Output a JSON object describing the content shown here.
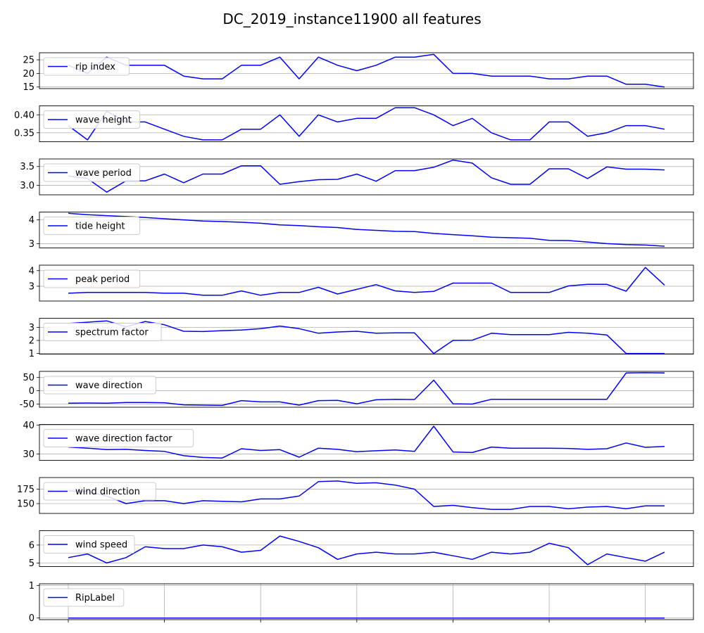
{
  "title": "DC_2019_instance11900 all features",
  "colors": {
    "line": "#0000ff",
    "grid": "#b0b0b0",
    "axes": "#000000"
  },
  "chart_data": [
    {
      "type": "line",
      "grid": true,
      "legend": "upper-left",
      "xlim": [
        -1.5,
        32.5
      ],
      "ylim": [
        14.4,
        27.6
      ],
      "yticks": [
        15,
        20,
        25
      ],
      "series": [
        {
          "name": "rip index",
          "values": [
            23,
            20,
            26,
            23,
            23,
            23,
            19,
            18,
            18,
            23,
            23,
            26,
            18,
            26,
            23,
            21,
            23,
            26,
            26,
            27,
            20,
            20,
            19,
            19,
            19,
            18,
            18,
            19,
            19,
            16,
            16,
            15
          ]
        }
      ]
    },
    {
      "type": "line",
      "grid": true,
      "legend": "upper-left",
      "xlim": [
        -1.5,
        32.5
      ],
      "ylim": [
        0.325,
        0.425
      ],
      "yticks": [
        0.35,
        0.4
      ],
      "ytick_labels": [
        "0.35",
        "0.40"
      ],
      "series": [
        {
          "name": "wave height",
          "values": [
            0.37,
            0.33,
            0.41,
            0.38,
            0.38,
            0.36,
            0.34,
            0.33,
            0.33,
            0.36,
            0.36,
            0.4,
            0.34,
            0.4,
            0.38,
            0.39,
            0.39,
            0.42,
            0.42,
            0.4,
            0.37,
            0.39,
            0.35,
            0.33,
            0.33,
            0.38,
            0.38,
            0.34,
            0.35,
            0.37,
            0.37,
            0.36
          ]
        }
      ]
    },
    {
      "type": "line",
      "grid": true,
      "legend": "upper-left",
      "xlim": [
        -1.5,
        32.5
      ],
      "ylim": [
        2.75,
        3.7
      ],
      "yticks": [
        3.0,
        3.5
      ],
      "ytick_labels": [
        "3.0",
        "3.5"
      ],
      "series": [
        {
          "name": "wave period",
          "values": [
            3.25,
            3.18,
            2.82,
            3.12,
            3.12,
            3.3,
            3.07,
            3.3,
            3.3,
            3.52,
            3.52,
            3.03,
            3.1,
            3.15,
            3.16,
            3.3,
            3.11,
            3.39,
            3.39,
            3.48,
            3.67,
            3.59,
            3.2,
            3.03,
            3.03,
            3.44,
            3.44,
            3.18,
            3.49,
            3.43,
            3.43,
            3.41
          ]
        }
      ]
    },
    {
      "type": "line",
      "grid": true,
      "legend": "upper-left",
      "xlim": [
        -1.5,
        32.5
      ],
      "ylim": [
        2.82,
        4.33
      ],
      "yticks": [
        3,
        4
      ],
      "series": [
        {
          "name": "tide height",
          "values": [
            4.28,
            4.22,
            4.18,
            4.14,
            4.1,
            4.05,
            4.0,
            3.95,
            3.93,
            3.9,
            3.86,
            3.79,
            3.76,
            3.71,
            3.68,
            3.6,
            3.56,
            3.52,
            3.51,
            3.43,
            3.38,
            3.33,
            3.27,
            3.25,
            3.23,
            3.14,
            3.13,
            3.07,
            3.0,
            2.96,
            2.94,
            2.89
          ]
        }
      ]
    },
    {
      "type": "line",
      "grid": true,
      "legend": "upper-left",
      "xlim": [
        -1.5,
        32.5
      ],
      "ylim": [
        2.05,
        4.35
      ],
      "yticks": [
        3,
        4
      ],
      "series": [
        {
          "name": "peak period",
          "values": [
            2.55,
            2.6,
            2.6,
            2.6,
            2.6,
            2.55,
            2.55,
            2.42,
            2.42,
            2.7,
            2.42,
            2.6,
            2.6,
            2.93,
            2.5,
            2.8,
            3.1,
            2.7,
            2.6,
            2.67,
            3.2,
            3.2,
            3.2,
            2.6,
            2.6,
            2.6,
            3.02,
            3.12,
            3.12,
            2.68,
            4.2,
            3.07
          ]
        }
      ]
    },
    {
      "type": "line",
      "grid": true,
      "legend": "upper-left",
      "xlim": [
        -1.5,
        32.5
      ],
      "ylim": [
        0.95,
        3.7
      ],
      "yticks": [
        1,
        2,
        3
      ],
      "series": [
        {
          "name": "spectrum factor",
          "values": [
            3.3,
            3.4,
            3.5,
            3.05,
            3.45,
            3.2,
            2.7,
            2.68,
            2.75,
            2.8,
            2.9,
            3.1,
            2.9,
            2.55,
            2.65,
            2.7,
            2.55,
            2.58,
            2.58,
            1.0,
            2.0,
            2.02,
            2.55,
            2.45,
            2.45,
            2.45,
            2.62,
            2.55,
            2.42,
            1.0,
            1.0,
            1.0
          ]
        }
      ]
    },
    {
      "type": "line",
      "grid": true,
      "legend": "upper-left",
      "xlim": [
        -1.5,
        32.5
      ],
      "ylim": [
        -62,
        73
      ],
      "yticks": [
        -50,
        0,
        50
      ],
      "series": [
        {
          "name": "wave direction",
          "values": [
            -47,
            -46,
            -47,
            -44,
            -44,
            -45,
            -53,
            -54,
            -55,
            -37,
            -42,
            -42,
            -54,
            -37,
            -36,
            -49,
            -34,
            -32,
            -33,
            40,
            -49,
            -50,
            -32,
            -32,
            -32,
            -32,
            -32,
            -32,
            -32,
            67,
            68,
            67
          ]
        }
      ]
    },
    {
      "type": "line",
      "grid": true,
      "legend": "upper-left",
      "xlim": [
        -1.5,
        32.5
      ],
      "ylim": [
        27.8,
        40.2
      ],
      "yticks": [
        30,
        40
      ],
      "series": [
        {
          "name": "wave direction factor",
          "values": [
            32.4,
            32.0,
            31.5,
            31.6,
            31.2,
            30.9,
            29.4,
            28.8,
            28.6,
            31.8,
            31.2,
            31.5,
            28.9,
            32.0,
            31.6,
            30.8,
            31.1,
            31.4,
            30.9,
            39.6,
            30.7,
            30.5,
            32.4,
            32.0,
            32.0,
            32.0,
            31.9,
            31.6,
            31.8,
            33.8,
            32.3,
            32.6
          ]
        }
      ]
    },
    {
      "type": "line",
      "grid": true,
      "legend": "upper-left",
      "xlim": [
        -1.5,
        32.5
      ],
      "ylim": [
        133,
        195
      ],
      "yticks": [
        150,
        175
      ],
      "series": [
        {
          "name": "wind direction",
          "values": [
            172,
            171,
            163,
            150,
            155,
            155,
            150,
            155,
            154,
            153,
            158,
            158,
            163,
            188,
            189,
            185,
            186,
            182,
            175,
            145,
            147,
            143,
            140,
            140,
            145,
            145,
            141,
            144,
            145,
            141,
            146,
            146
          ]
        }
      ]
    },
    {
      "type": "line",
      "grid": true,
      "legend": "upper-left",
      "xlim": [
        -1.5,
        32.5
      ],
      "ylim": [
        4.8,
        6.8
      ],
      "yticks": [
        5,
        6
      ],
      "series": [
        {
          "name": "wind speed",
          "values": [
            5.3,
            5.5,
            5.0,
            5.3,
            5.9,
            5.8,
            5.8,
            6.0,
            5.9,
            5.6,
            5.7,
            6.5,
            6.2,
            5.85,
            5.2,
            5.5,
            5.6,
            5.5,
            5.5,
            5.6,
            5.4,
            5.2,
            5.6,
            5.5,
            5.6,
            6.1,
            5.85,
            4.9,
            5.5,
            5.3,
            5.1,
            5.6
          ]
        }
      ]
    },
    {
      "type": "line",
      "grid": true,
      "legend": "upper-left",
      "xlim": [
        -1.5,
        32.5
      ],
      "ylim": [
        -0.05,
        1.05
      ],
      "yticks": [
        0,
        1
      ],
      "series": [
        {
          "name": "RipLabel",
          "values": [
            0,
            0,
            0,
            0,
            0,
            0,
            0,
            0,
            0,
            0,
            0,
            0,
            0,
            0,
            0,
            0,
            0,
            0,
            0,
            0,
            0,
            0,
            0,
            0,
            0,
            0,
            0,
            0,
            0,
            0,
            0,
            0
          ]
        }
      ]
    }
  ]
}
